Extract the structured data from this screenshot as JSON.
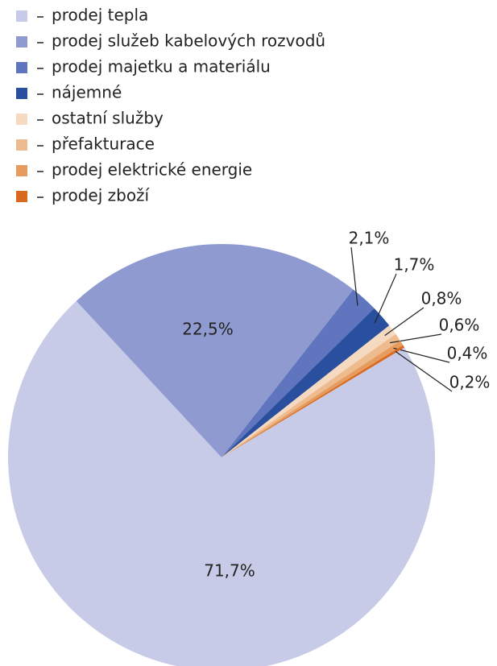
{
  "chart_data": {
    "type": "pie",
    "categories": [
      "prodej tepla",
      "prodej služeb kabelových rozvodů",
      "prodej majetku a materiálu",
      "nájemné",
      "ostatní služby",
      "přefakturace",
      "prodej elektrické energie",
      "prodej zboží"
    ],
    "values": [
      71.7,
      22.5,
      2.1,
      1.7,
      0.8,
      0.6,
      0.4,
      0.2
    ],
    "value_labels": [
      "71,7%",
      "22,5%",
      "2,1%",
      "1,7%",
      "0,8%",
      "0,6%",
      "0,4%",
      "0,2%"
    ],
    "colors": [
      "#c8cbe8",
      "#8f9bd0",
      "#5f75bd",
      "#2a4f9e",
      "#f5d9c0",
      "#eebb8e",
      "#e59c5e",
      "#d9691f"
    ],
    "legend": "top-left"
  }
}
